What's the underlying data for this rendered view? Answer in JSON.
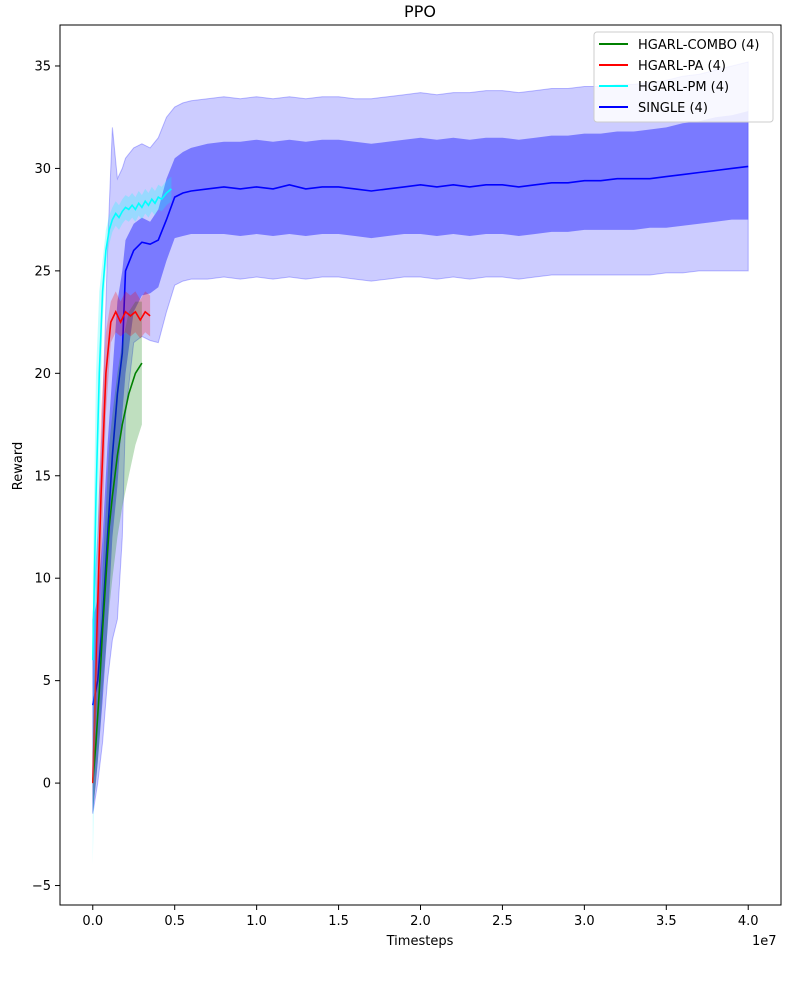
{
  "chart_data": {
    "type": "line",
    "title": "PPO",
    "xlabel": "Timesteps",
    "ylabel": "Reward",
    "x_offset_label": "1e7",
    "xlim": [
      -0.2,
      4.2
    ],
    "ylim": [
      -5.95,
      37.0
    ],
    "x_ticks": [
      0.0,
      0.5,
      1.0,
      1.5,
      2.0,
      2.5,
      3.0,
      3.5,
      4.0
    ],
    "x_tick_labels": [
      "0.0",
      "0.5",
      "1.0",
      "1.5",
      "2.0",
      "2.5",
      "3.0",
      "3.5",
      "4.0"
    ],
    "y_ticks": [
      -5,
      0,
      5,
      10,
      15,
      20,
      25,
      30,
      35
    ],
    "y_tick_labels": [
      "−5",
      "0",
      "5",
      "10",
      "15",
      "20",
      "25",
      "30",
      "35"
    ],
    "legend_position": "top-right",
    "grid": false,
    "series": [
      {
        "name": "HGARL-COMBO (4)",
        "color": "#008000",
        "x": [
          0.0,
          0.02,
          0.04,
          0.06,
          0.08,
          0.1,
          0.12,
          0.15,
          0.18,
          0.22,
          0.26,
          0.3
        ],
        "mean": [
          0.0,
          2.0,
          4.5,
          7.5,
          10.0,
          12.5,
          14.0,
          16.0,
          17.5,
          19.0,
          20.0,
          20.5
        ],
        "std_lo": [
          -1.5,
          0.0,
          2.0,
          4.5,
          6.5,
          8.5,
          10.0,
          12.0,
          13.5,
          15.0,
          16.5,
          17.5
        ],
        "std_hi": [
          1.5,
          4.0,
          7.0,
          10.5,
          13.5,
          16.5,
          18.0,
          20.0,
          21.5,
          23.0,
          23.5,
          23.5
        ]
      },
      {
        "name": "HGARL-PA (4)",
        "color": "#ff0000",
        "x": [
          0.0,
          0.02,
          0.05,
          0.08,
          0.11,
          0.14,
          0.17,
          0.2,
          0.23,
          0.26,
          0.29,
          0.32,
          0.35
        ],
        "mean": [
          0.0,
          6.0,
          14.0,
          20.0,
          22.5,
          23.0,
          22.5,
          23.0,
          22.8,
          23.0,
          22.6,
          23.0,
          22.8
        ],
        "std_lo": [
          -1.0,
          3.0,
          10.0,
          18.0,
          21.5,
          22.0,
          21.8,
          22.0,
          21.8,
          22.0,
          21.7,
          22.0,
          21.8
        ],
        "std_hi": [
          1.0,
          9.0,
          18.0,
          22.0,
          23.5,
          24.0,
          23.5,
          24.0,
          23.8,
          24.0,
          23.6,
          24.0,
          23.8
        ]
      },
      {
        "name": "HGARL-PM (4)",
        "color": "#00ffff",
        "x": [
          0.0,
          0.02,
          0.04,
          0.06,
          0.08,
          0.1,
          0.12,
          0.14,
          0.16,
          0.18,
          0.2,
          0.22,
          0.24,
          0.26,
          0.28,
          0.3,
          0.32,
          0.34,
          0.36,
          0.38,
          0.4,
          0.42,
          0.45,
          0.48
        ],
        "mean": [
          6.0,
          14.0,
          20.0,
          24.0,
          26.0,
          27.0,
          27.5,
          27.8,
          27.6,
          27.9,
          28.1,
          28.0,
          28.2,
          28.0,
          28.3,
          28.1,
          28.4,
          28.2,
          28.5,
          28.3,
          28.6,
          28.5,
          28.8,
          29.0
        ],
        "std_lo": [
          -4.0,
          6.0,
          16.0,
          22.5,
          25.0,
          26.3,
          26.9,
          27.2,
          27.0,
          27.3,
          27.5,
          27.4,
          27.6,
          27.4,
          27.7,
          27.5,
          27.8,
          27.6,
          27.9,
          27.7,
          28.0,
          27.9,
          28.2,
          28.4
        ],
        "std_hi": [
          10.0,
          20.0,
          24.0,
          25.5,
          27.0,
          27.7,
          28.1,
          28.4,
          28.2,
          28.5,
          28.7,
          28.6,
          28.8,
          28.6,
          28.9,
          28.7,
          29.0,
          28.8,
          29.1,
          28.9,
          29.2,
          29.1,
          29.4,
          29.6
        ]
      },
      {
        "name": "SINGLE (4)",
        "color": "#0000ff",
        "x": [
          0.0,
          0.03,
          0.06,
          0.09,
          0.12,
          0.15,
          0.18,
          0.2,
          0.25,
          0.3,
          0.35,
          0.4,
          0.45,
          0.5,
          0.55,
          0.6,
          0.7,
          0.8,
          0.9,
          1.0,
          1.1,
          1.2,
          1.3,
          1.4,
          1.5,
          1.6,
          1.7,
          1.8,
          1.9,
          2.0,
          2.1,
          2.2,
          2.3,
          2.4,
          2.5,
          2.6,
          2.7,
          2.8,
          2.9,
          3.0,
          3.1,
          3.2,
          3.3,
          3.4,
          3.5,
          3.6,
          3.7,
          3.8,
          3.9,
          4.0
        ],
        "mean": [
          3.8,
          5.0,
          8.0,
          12.0,
          16.0,
          19.0,
          21.0,
          25.0,
          26.0,
          26.4,
          26.3,
          26.5,
          27.5,
          28.6,
          28.8,
          28.9,
          29.0,
          29.1,
          29.0,
          29.1,
          29.0,
          29.2,
          29.0,
          29.1,
          29.1,
          29.0,
          28.9,
          29.0,
          29.1,
          29.2,
          29.1,
          29.2,
          29.1,
          29.2,
          29.2,
          29.1,
          29.2,
          29.3,
          29.3,
          29.4,
          29.4,
          29.5,
          29.5,
          29.5,
          29.6,
          29.7,
          29.8,
          29.9,
          30.0,
          30.1
        ],
        "std_lo": [
          -1.5,
          1.0,
          4.0,
          7.5,
          12.0,
          14.5,
          18.0,
          20.0,
          23.0,
          23.8,
          23.9,
          24.2,
          25.5,
          26.6,
          26.7,
          26.8,
          26.8,
          26.8,
          26.7,
          26.8,
          26.7,
          26.8,
          26.7,
          26.8,
          26.8,
          26.7,
          26.6,
          26.7,
          26.8,
          26.8,
          26.7,
          26.8,
          26.7,
          26.8,
          26.8,
          26.7,
          26.8,
          26.9,
          26.9,
          27.0,
          27.0,
          27.0,
          27.0,
          27.1,
          27.1,
          27.2,
          27.3,
          27.4,
          27.5,
          27.5
        ],
        "std_hi": [
          8.0,
          9.0,
          12.0,
          16.5,
          20.0,
          23.5,
          25.0,
          26.5,
          27.3,
          27.6,
          27.4,
          28.0,
          29.5,
          30.5,
          30.8,
          31.0,
          31.2,
          31.3,
          31.3,
          31.4,
          31.3,
          31.4,
          31.3,
          31.4,
          31.4,
          31.3,
          31.2,
          31.3,
          31.4,
          31.5,
          31.4,
          31.5,
          31.4,
          31.5,
          31.5,
          31.4,
          31.5,
          31.6,
          31.6,
          31.7,
          31.7,
          31.8,
          31.8,
          31.9,
          32.0,
          32.2,
          32.3,
          32.5,
          32.6,
          32.8
        ],
        "outer_lo": [
          -1.5,
          0.0,
          2.0,
          5.0,
          7.0,
          8.0,
          12.0,
          18.0,
          21.5,
          21.8,
          21.6,
          21.5,
          23.0,
          24.3,
          24.5,
          24.6,
          24.6,
          24.7,
          24.6,
          24.7,
          24.6,
          24.7,
          24.6,
          24.7,
          24.7,
          24.6,
          24.5,
          24.6,
          24.7,
          24.7,
          24.6,
          24.7,
          24.6,
          24.7,
          24.7,
          24.6,
          24.7,
          24.8,
          24.8,
          24.8,
          24.8,
          24.8,
          24.8,
          24.8,
          24.9,
          24.9,
          25.0,
          25.0,
          25.0,
          25.0
        ],
        "outer_hi": [
          8.0,
          12.0,
          18.0,
          26.0,
          32.0,
          29.5,
          30.0,
          30.5,
          31.0,
          31.2,
          31.0,
          31.5,
          32.5,
          33.0,
          33.2,
          33.3,
          33.4,
          33.5,
          33.4,
          33.5,
          33.4,
          33.5,
          33.4,
          33.5,
          33.5,
          33.4,
          33.4,
          33.5,
          33.6,
          33.7,
          33.6,
          33.7,
          33.7,
          33.8,
          33.8,
          33.7,
          33.8,
          33.9,
          33.9,
          34.0,
          34.0,
          34.1,
          34.1,
          34.2,
          34.3,
          34.5,
          34.6,
          34.8,
          35.0,
          35.2
        ]
      }
    ]
  }
}
